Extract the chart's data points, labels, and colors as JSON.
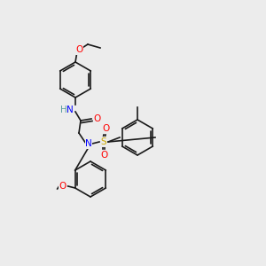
{
  "bg_color": "#ececec",
  "bond_color": "#1a1a1a",
  "atom_colors": {
    "O": "#ff0000",
    "N": "#0000ff",
    "S": "#ccaa00",
    "H": "#5a9ea0",
    "C": "#1a1a1a"
  },
  "font_size": 7.5,
  "line_width": 1.2
}
